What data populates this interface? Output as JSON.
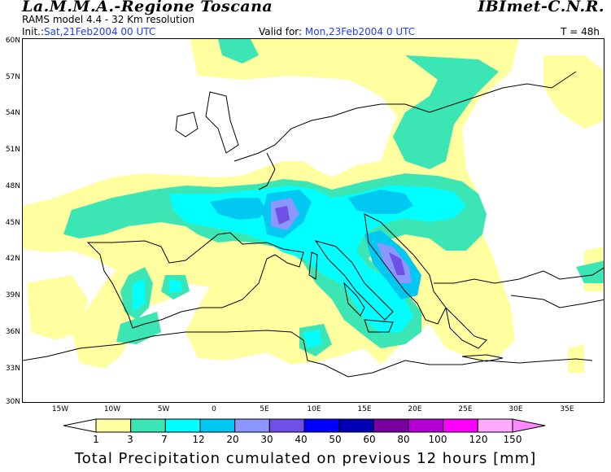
{
  "header": {
    "title_left": "La.M.M.A.-Regione Toscana",
    "title_right": "IBImet-C.N.R.",
    "model_line": "RAMS model 4.4   -   32 Km resolution",
    "init_label": "Init.:",
    "init_value": "Sat,21Feb2004 00 UTC",
    "valid_label": "Valid for:",
    "valid_value": "Mon,23Feb2004 0 UTC",
    "forecast_time": "T = 48h"
  },
  "map": {
    "lat_labels": [
      "60N",
      "57N",
      "54N",
      "51N",
      "48N",
      "45N",
      "42N",
      "39N",
      "36N",
      "33N",
      "30N"
    ],
    "lon_labels": [
      "15W",
      "10W",
      "5W",
      "0",
      "5E",
      "10E",
      "15E",
      "20E",
      "25E",
      "30E",
      "35E"
    ]
  },
  "legend": {
    "labels": [
      "1",
      "3",
      "7",
      "12",
      "20",
      "30",
      "40",
      "50",
      "60",
      "80",
      "100",
      "120",
      "150"
    ],
    "colors": [
      "#ffffa0",
      "#3ce6b4",
      "#00ffff",
      "#00c8f0",
      "#8c96ff",
      "#6e50e6",
      "#0000ff",
      "#0000b4",
      "#7800a0",
      "#b400d2",
      "#ff00ff",
      "#ffaaff",
      "#ff78ff"
    ],
    "unit_caption": "Total Precipitation cumulated on previous 12 hours [mm]"
  }
}
